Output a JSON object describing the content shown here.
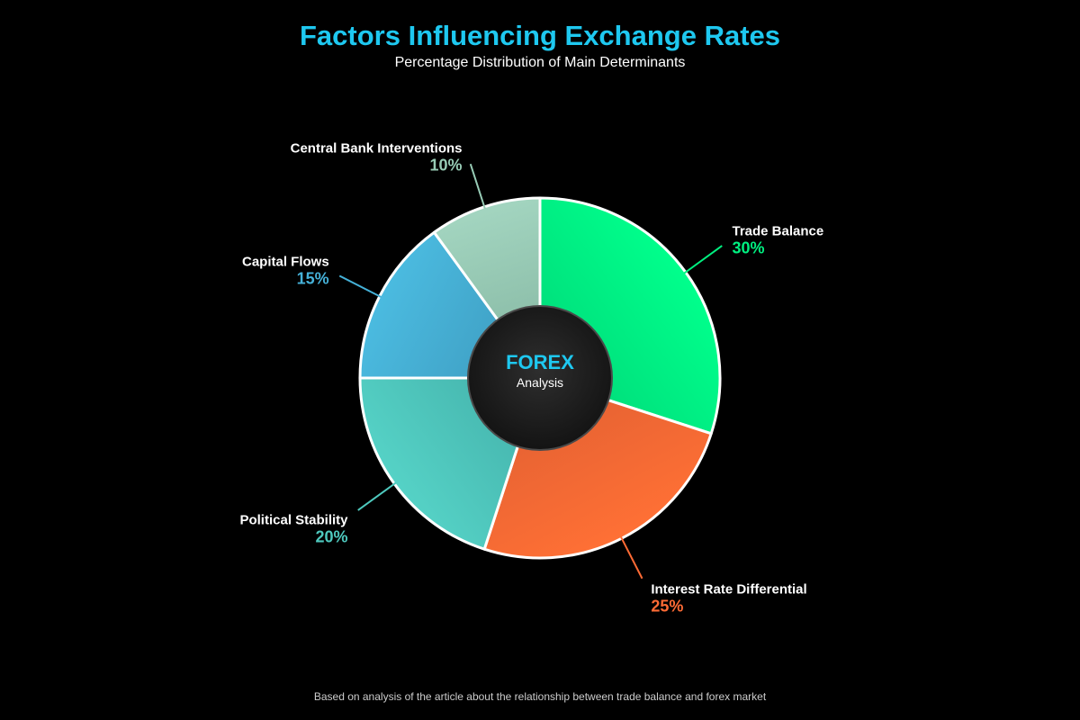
{
  "title": "Factors Influencing Exchange Rates",
  "subtitle": "Percentage Distribution of Main Determinants",
  "center": {
    "label": "FOREX",
    "sublabel": "Analysis"
  },
  "footer": "Based on analysis of the article about the relationship between trade balance and forex market",
  "colors": {
    "title": "#1ec8f0",
    "background": "#000000",
    "slice_border": "#ffffff"
  },
  "chart_data": {
    "type": "pie",
    "title": "Factors Influencing Exchange Rates",
    "subtitle": "Percentage Distribution of Main Determinants",
    "start_angle_deg": 0,
    "direction": "clockwise",
    "inner_hole": true,
    "slices": [
      {
        "label": "Trade Balance",
        "value": 30,
        "display": "30%",
        "color": "#00f080",
        "color_light": "#00ff8c",
        "color_dark": "#00d878"
      },
      {
        "label": "Interest Rate Differential",
        "value": 25,
        "display": "25%",
        "color": "#ff6b35",
        "color_light": "#ff7035",
        "color_dark": "#e05f32"
      },
      {
        "label": "Political Stability",
        "value": 20,
        "display": "20%",
        "color": "#4ec9be",
        "color_light": "#55d2c6",
        "color_dark": "#42aea8"
      },
      {
        "label": "Capital Flows",
        "value": 15,
        "display": "15%",
        "color": "#45b1d8",
        "color_light": "#4bbbe0",
        "color_dark": "#3c98bc"
      },
      {
        "label": "Central Bank Interventions",
        "value": 10,
        "display": "10%",
        "color": "#97cbb5",
        "color_light": "#a3d5c0",
        "color_dark": "#82b49f"
      }
    ]
  }
}
